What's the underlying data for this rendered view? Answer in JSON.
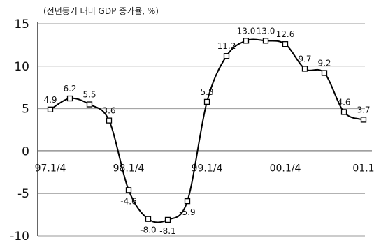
{
  "chart_data": {
    "type": "line",
    "unit_label": "(전년동기 대비 GDP 증가율, %)",
    "x": [
      "97.1/4",
      "97.2/4",
      "97.3/4",
      "97.4/4",
      "98.1/4",
      "98.2/4",
      "98.3/4",
      "98.4/4",
      "99.1/4",
      "99.2/4",
      "99.3/4",
      "99.4/4",
      "00.1/4",
      "00.2/4",
      "00.3/4",
      "00.4/4",
      "01.1/4"
    ],
    "x_tick_labels": [
      "97.1/4",
      "98.1/4",
      "99.1/4",
      "00.1/4",
      "01.1"
    ],
    "series": [
      {
        "values": [
          4.9,
          6.2,
          5.5,
          3.6,
          -4.6,
          -8.0,
          -8.1,
          -5.9,
          5.8,
          11.2,
          13.0,
          13.0,
          12.6,
          9.7,
          9.2,
          4.6,
          3.7
        ],
        "data_labels": [
          "4.9",
          "6.2",
          "5.5",
          "3.6",
          "-4.6",
          "-8.0",
          "-8.1",
          "-5.9",
          "5.8",
          "11.2",
          "13.0",
          "13.0",
          "12.6",
          "9.7",
          "9.2",
          "4.6",
          "3.7"
        ]
      }
    ],
    "ylim": [
      -10,
      15
    ],
    "yticks": [
      "15",
      "10",
      "5",
      "0",
      "-5",
      "-10"
    ],
    "grid": true,
    "legend": "none",
    "colors": {
      "line": "#000000",
      "grid": "#999999",
      "marker_fill": "#ffffff"
    }
  }
}
